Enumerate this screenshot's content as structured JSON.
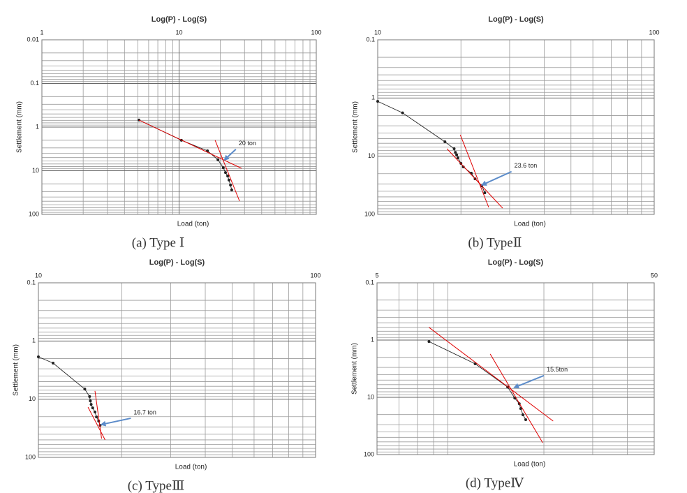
{
  "chart_data": [
    {
      "type": "line",
      "title": "Log(P)  -  Log(S)",
      "xlabel": "Load (ton)",
      "ylabel": "Settlement (mm)",
      "caption": "(a)  Type Ⅰ",
      "xscale": "log",
      "yscale": "log",
      "y_inverted": true,
      "grid": true,
      "xlim": [
        1,
        100
      ],
      "xticks": [
        1,
        10,
        100
      ],
      "ylim": [
        0.01,
        100
      ],
      "yticks": [
        0.01,
        0.1,
        1,
        10,
        100
      ],
      "series": [
        {
          "color": "#222222",
          "marker": true,
          "x": [
            5.1,
            10.4,
            16.1,
            19.2,
            21.0,
            21.8,
            22.6,
            23.1,
            23.7,
            24.2
          ],
          "values": [
            0.69,
            2.0,
            3.5,
            5.6,
            8.5,
            11,
            13.2,
            16.4,
            21.3,
            27.5
          ]
        },
        {
          "color": "#e00000",
          "marker": false,
          "x": [
            5.1,
            28.5
          ],
          "values": [
            0.69,
            8.8
          ]
        },
        {
          "color": "#e00000",
          "marker": false,
          "x": [
            18.3,
            27.6
          ],
          "values": [
            2.0,
            49.7
          ]
        }
      ],
      "annotations": [
        {
          "text": "20 ton",
          "x": 21.0,
          "y": 5.8
        }
      ]
    },
    {
      "type": "line",
      "title": "Log(P)  -  Log(S)",
      "xlabel": "Load (ton)",
      "ylabel": "Settlement (mm)",
      "caption": "(b)  TypeⅡ",
      "xscale": "log",
      "yscale": "log",
      "y_inverted": true,
      "grid": true,
      "xlim": [
        10,
        100
      ],
      "xticks": [
        10,
        100
      ],
      "ylim": [
        0.1,
        100
      ],
      "yticks": [
        0.1,
        1,
        10,
        100
      ],
      "series": [
        {
          "color": "#222222",
          "marker": true,
          "x": [
            10,
            12.3,
            17.5,
            18.9,
            19.1,
            19.3,
            19.5,
            20.0,
            20.4,
            21.8,
            22.5,
            23.8,
            24.4
          ],
          "values": [
            1.14,
            1.8,
            5.65,
            7.45,
            8.6,
            9.5,
            10.7,
            13.3,
            15.3,
            19.6,
            24.5,
            32.3,
            42.6
          ]
        },
        {
          "color": "#e00000",
          "marker": false,
          "x": [
            19.9,
            25.2
          ],
          "values": [
            4.3,
            75.9
          ]
        },
        {
          "color": "#e00000",
          "marker": false,
          "x": [
            17.8,
            28.3
          ],
          "values": [
            7.45,
            78
          ]
        }
      ],
      "annotations": [
        {
          "text": "23.6 ton",
          "x": 23.6,
          "y": 32
        }
      ]
    },
    {
      "type": "line",
      "title": "Log(P)  -  Log(S)",
      "xlabel": "Load (ton)",
      "ylabel": "Settlement (mm)",
      "caption": "(c)  TypeⅢ",
      "xscale": "log",
      "yscale": "log",
      "y_inverted": true,
      "grid": true,
      "xlim": [
        10,
        100
      ],
      "xticks": [
        10,
        100
      ],
      "ylim": [
        0.1,
        100
      ],
      "yticks": [
        0.1,
        1,
        10,
        100
      ],
      "series": [
        {
          "color": "#222222",
          "marker": true,
          "x": [
            10,
            11.3,
            14.7,
            15.3,
            15.4,
            15.5,
            15.7,
            16.0,
            16.2,
            16.5,
            16.7
          ],
          "values": [
            1.87,
            2.4,
            6.7,
            9.0,
            10.7,
            12.3,
            14.1,
            16.6,
            20.2,
            23.8,
            28.1
          ]
        },
        {
          "color": "#e00000",
          "marker": false,
          "x": [
            16.0,
            16.9
          ],
          "values": [
            7.2,
            47.4
          ]
        },
        {
          "color": "#e00000",
          "marker": false,
          "x": [
            15.1,
            17.4
          ],
          "values": [
            13.7,
            50
          ]
        }
      ],
      "annotations": [
        {
          "text": "16.7 ton",
          "x": 16.7,
          "y": 28
        }
      ]
    },
    {
      "type": "line",
      "title": "Log(P)  -  Log(S)",
      "xlabel": "Load (ton)",
      "ylabel": "Settlement (mm)",
      "caption": "(d)  TypeⅣ",
      "xscale": "log",
      "yscale": "log",
      "y_inverted": true,
      "grid": true,
      "xlim": [
        5,
        50
      ],
      "xticks": [
        5,
        50
      ],
      "ylim": [
        0.1,
        100
      ],
      "yticks": [
        0.1,
        1,
        10,
        100
      ],
      "series": [
        {
          "color": "#222222",
          "marker": true,
          "x": [
            7.7,
            11.3,
            14.8,
            15.7,
            16.3,
            16.5,
            16.8,
            17.2
          ],
          "values": [
            1.06,
            2.6,
            6.6,
            10.3,
            12.9,
            15.7,
            20.2,
            24.6
          ]
        },
        {
          "color": "#e00000",
          "marker": false,
          "x": [
            7.7,
            21.6
          ],
          "values": [
            0.6,
            26
          ]
        },
        {
          "color": "#e00000",
          "marker": false,
          "x": [
            12.8,
            19.8
          ],
          "values": [
            1.75,
            62
          ]
        }
      ],
      "annotations": [
        {
          "text": "15.5ton",
          "x": 15.5,
          "y": 6.9
        }
      ]
    }
  ]
}
